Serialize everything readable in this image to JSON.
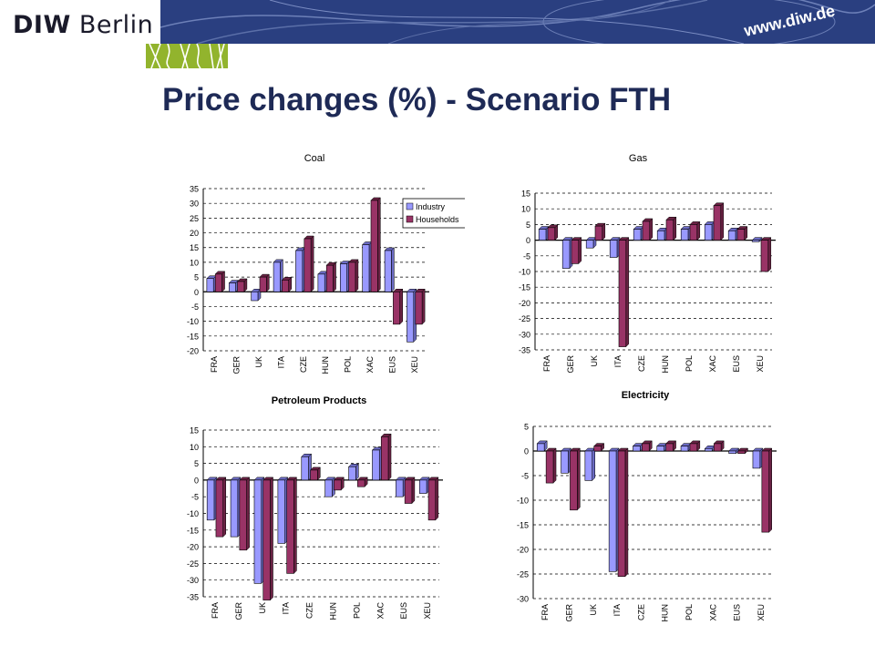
{
  "header": {
    "logo_bold": "DIW",
    "logo_rest": "Berlin",
    "url": "www.diw.de",
    "colors": {
      "banner": "#2a3f80",
      "accent_green": "#92b42d"
    }
  },
  "title": "Price changes (%) - Scenario FTH",
  "chart_data": [
    {
      "type": "bar",
      "title": "Coal",
      "categories": [
        "FRA",
        "GER",
        "UK",
        "ITA",
        "CZE",
        "HUN",
        "POL",
        "XAC",
        "EUS",
        "XEU"
      ],
      "series": [
        {
          "name": "Industry",
          "values": [
            4.5,
            3,
            -3,
            10,
            14,
            6,
            9.5,
            16,
            14,
            -17
          ]
        },
        {
          "name": "Households",
          "values": [
            6,
            3.5,
            5,
            4,
            18,
            9,
            10,
            31,
            -11,
            -11
          ]
        }
      ],
      "yticks": [
        35,
        30,
        25,
        20,
        15,
        10,
        5,
        0,
        -5,
        -10,
        -15,
        -20
      ],
      "ylim": [
        -20,
        35
      ],
      "grid": true,
      "legend": "top-right"
    },
    {
      "type": "bar",
      "title": "Gas",
      "categories": [
        "FRA",
        "GER",
        "UK",
        "ITA",
        "CZE",
        "HUN",
        "POL",
        "XAC",
        "EUS",
        "XEU"
      ],
      "series": [
        {
          "name": "Industry",
          "values": [
            3.5,
            -9,
            -2.5,
            -5.5,
            3.5,
            3,
            3.5,
            5,
            3,
            -0.5
          ]
        },
        {
          "name": "Households",
          "values": [
            4,
            -7.5,
            4.5,
            -34,
            6,
            6.5,
            5,
            11,
            3.5,
            -10
          ]
        }
      ],
      "yticks": [
        15,
        10,
        5,
        0,
        -5,
        -10,
        -15,
        -20,
        -25,
        -30,
        -35
      ],
      "ylim": [
        -35,
        15
      ],
      "grid": true
    },
    {
      "type": "bar",
      "title": "Petroleum Products",
      "categories": [
        "FRA",
        "GER",
        "UK",
        "ITA",
        "CZE",
        "HUN",
        "POL",
        "XAC",
        "EUS",
        "XEU"
      ],
      "series": [
        {
          "name": "Industry",
          "values": [
            -12,
            -17,
            -31,
            -19,
            7,
            -5,
            4,
            9,
            -5,
            -4
          ]
        },
        {
          "name": "Households",
          "values": [
            -17,
            -21,
            -36,
            -28,
            3,
            -3,
            -2,
            13,
            -7,
            -12
          ]
        }
      ],
      "yticks": [
        15,
        10,
        5,
        0,
        -5,
        -10,
        -15,
        -20,
        -25,
        -30,
        -35
      ],
      "ylim": [
        -35,
        15
      ],
      "grid": true
    },
    {
      "type": "bar",
      "title": "Electricity",
      "categories": [
        "FRA",
        "GER",
        "UK",
        "ITA",
        "CZE",
        "HUN",
        "POL",
        "XAC",
        "EUS",
        "XEU"
      ],
      "series": [
        {
          "name": "Industry",
          "values": [
            1.5,
            -4.5,
            -6,
            -24.5,
            1,
            1,
            1,
            0.5,
            -0.5,
            -3.5
          ]
        },
        {
          "name": "Households",
          "values": [
            -6.5,
            -12,
            1,
            -25.5,
            1.5,
            1.5,
            1.5,
            1.5,
            -0.5,
            -16.5
          ]
        }
      ],
      "yticks": [
        5,
        0,
        -5,
        -10,
        -15,
        -20,
        -25,
        -30
      ],
      "ylim": [
        -30,
        5
      ],
      "grid": true
    }
  ],
  "colors": {
    "industry": "#9999ff",
    "households": "#993366"
  }
}
